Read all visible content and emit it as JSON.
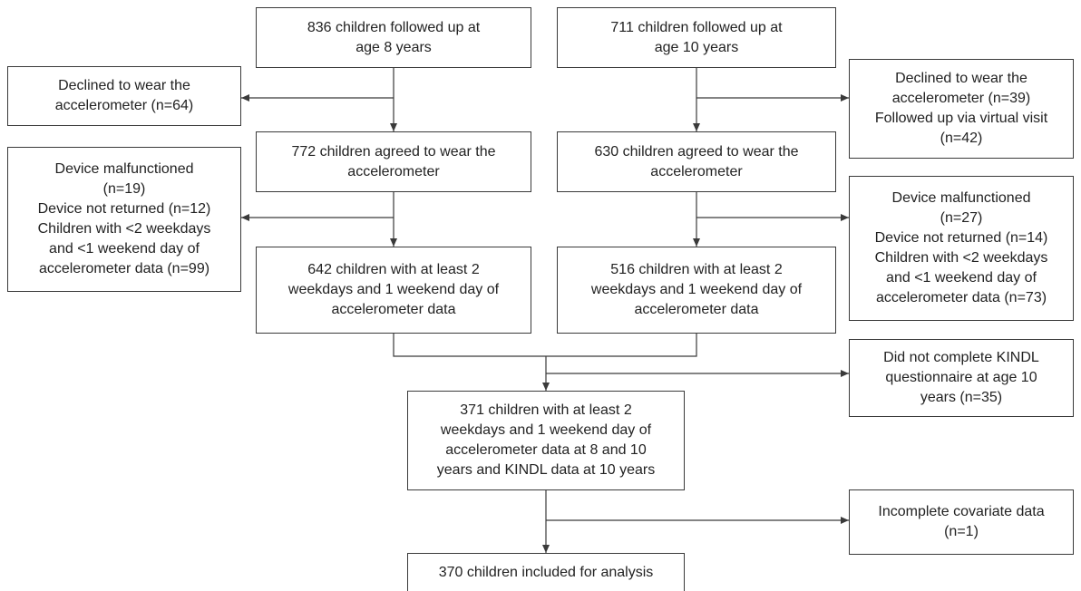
{
  "boxes": {
    "a8_followed": "836 children followed up at\nage 8 years",
    "a10_followed": "711 children followed up at\nage 10 years",
    "a8_declined": "Declined to wear the\naccelerometer (n=64)",
    "a10_declined": "Declined to wear the\naccelerometer (n=39)\nFollowed up via virtual visit\n(n=42)",
    "a8_agreed": "772 children agreed to wear the\naccelerometer",
    "a10_agreed": "630 children agreed to wear the\naccelerometer",
    "a8_excluded": "Device malfunctioned\n(n=19)\nDevice not returned (n=12)\nChildren with <2 weekdays\nand <1 weekend day of\naccelerometer data (n=99)",
    "a10_excluded": "Device malfunctioned\n(n=27)\nDevice not returned (n=14)\nChildren with <2 weekdays\nand <1 weekend day of\naccelerometer data (n=73)",
    "a8_valid": "642 children with at least 2\nweekdays and 1 weekend day of\naccelerometer data",
    "a10_valid": "516 children with at least 2\nweekdays and 1 weekend day of\naccelerometer data",
    "kindl_missing": "Did not complete KINDL\nquestionnaire at age 10\nyears (n=35)",
    "combined": "371 children with at least 2\nweekdays and 1 weekend day of\naccelerometer data at 8 and 10\nyears and KINDL data at 10 years",
    "covariate_missing": "Incomplete covariate data\n(n=1)",
    "final": "370 children included for analysis"
  }
}
